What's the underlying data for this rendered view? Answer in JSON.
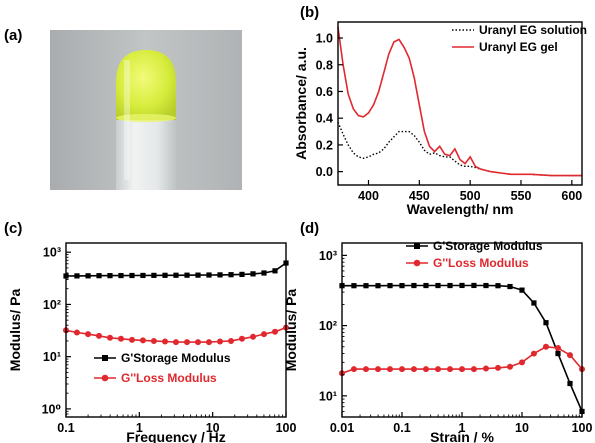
{
  "panel_labels": [
    "(a)",
    "(b)",
    "(c)",
    "(d)"
  ],
  "photo": {
    "background": "#b8bbbc",
    "gel_color": "#d9ef4a",
    "tube_color": "#dfe3e4"
  },
  "chart_data": [
    {
      "id": "b",
      "type": "line",
      "xlabel": "Wavelength/ nm",
      "ylabel": "Absorbance/ a.u.",
      "xlim": [
        370,
        610
      ],
      "ylim": [
        -0.1,
        1.12
      ],
      "xticks": [
        400,
        450,
        500,
        550,
        600
      ],
      "xtick_labels": [
        "400",
        "450",
        "500",
        "550",
        "600"
      ],
      "yticks": [
        0.0,
        0.2,
        0.4,
        0.6,
        0.8,
        1.0
      ],
      "ytick_labels": [
        "0.0",
        "0.2",
        "0.4",
        "0.6",
        "0.8",
        "1.0"
      ],
      "legend_position": "top-right",
      "series": [
        {
          "name": "Uranyl EG solution",
          "color": "#000000",
          "style": "dotted",
          "x": [
            370,
            375,
            380,
            385,
            390,
            395,
            400,
            405,
            410,
            415,
            420,
            425,
            430,
            435,
            440,
            445,
            450,
            455,
            460,
            465,
            470,
            475,
            480,
            485,
            490,
            495,
            500,
            505,
            510,
            520,
            530,
            540,
            550,
            560,
            580,
            600,
            610
          ],
          "y": [
            0.37,
            0.28,
            0.2,
            0.14,
            0.11,
            0.1,
            0.11,
            0.13,
            0.14,
            0.17,
            0.22,
            0.26,
            0.3,
            0.3,
            0.3,
            0.27,
            0.22,
            0.16,
            0.13,
            0.14,
            0.12,
            0.11,
            0.11,
            0.08,
            0.05,
            0.04,
            0.04,
            0.03,
            0.02,
            0.0,
            -0.01,
            -0.02,
            -0.02,
            -0.02,
            -0.03,
            -0.03,
            -0.03
          ]
        },
        {
          "name": "Uranyl EG gel",
          "color": "#e0282e",
          "style": "solid",
          "x": [
            370,
            375,
            380,
            385,
            390,
            395,
            400,
            405,
            410,
            415,
            420,
            425,
            430,
            435,
            440,
            445,
            450,
            455,
            460,
            465,
            470,
            475,
            480,
            485,
            490,
            495,
            500,
            505,
            510,
            520,
            530,
            540,
            550,
            560,
            580,
            600,
            610
          ],
          "y": [
            1.08,
            0.8,
            0.58,
            0.47,
            0.42,
            0.41,
            0.44,
            0.5,
            0.6,
            0.74,
            0.88,
            0.97,
            0.99,
            0.93,
            0.85,
            0.7,
            0.5,
            0.3,
            0.19,
            0.15,
            0.19,
            0.13,
            0.12,
            0.17,
            0.09,
            0.06,
            0.11,
            0.04,
            0.02,
            0.0,
            -0.01,
            -0.02,
            -0.02,
            -0.02,
            -0.03,
            -0.03,
            -0.03
          ]
        }
      ]
    },
    {
      "id": "c",
      "type": "line",
      "xlabel": "Frequency / Hz",
      "ylabel": "Modulus/ Pa",
      "xscale": "log",
      "yscale": "log",
      "xlim": [
        0.1,
        100
      ],
      "ylim": [
        0.7,
        1500
      ],
      "xticks": [
        0.1,
        1,
        10,
        100
      ],
      "xtick_labels": [
        "0.1",
        "1",
        "10",
        "100"
      ],
      "yticks": [
        1,
        10,
        100,
        1000
      ],
      "ytick_labels": [
        "10⁰",
        "10¹",
        "10²",
        "10³"
      ],
      "legend_position": "bottom-left",
      "series": [
        {
          "name": "G'Storage Modulus",
          "color": "#000000",
          "marker": "square",
          "x": [
            0.1,
            0.141,
            0.2,
            0.282,
            0.398,
            0.562,
            0.794,
            1.12,
            1.58,
            2.24,
            3.16,
            4.47,
            6.31,
            8.91,
            12.6,
            17.8,
            25.1,
            35.5,
            50.1,
            70.8,
            100
          ],
          "y": [
            350,
            352,
            353,
            355,
            356,
            357,
            358,
            359,
            360,
            361,
            362,
            363,
            364,
            366,
            368,
            371,
            376,
            385,
            400,
            440,
            620
          ]
        },
        {
          "name": "G''Loss Modulus",
          "color": "#e0282e",
          "marker": "circle",
          "x": [
            0.1,
            0.141,
            0.2,
            0.282,
            0.398,
            0.562,
            0.794,
            1.12,
            1.58,
            2.24,
            3.16,
            4.47,
            6.31,
            8.91,
            12.6,
            17.8,
            25.1,
            35.5,
            50.1,
            70.8,
            100
          ],
          "y": [
            32,
            29,
            27,
            25,
            23,
            22,
            21,
            20.5,
            20,
            19.5,
            19,
            19,
            19,
            19,
            19.5,
            20,
            22,
            24,
            27,
            30,
            36
          ]
        }
      ]
    },
    {
      "id": "d",
      "type": "line",
      "xlabel": "Strain / %",
      "ylabel": "Modulus/ Pa",
      "xscale": "log",
      "yscale": "log",
      "xlim": [
        0.01,
        100
      ],
      "ylim": [
        5,
        1500
      ],
      "xticks": [
        0.01,
        0.1,
        1,
        10,
        100
      ],
      "xtick_labels": [
        "0.01",
        "0.1",
        "1",
        "10",
        "100"
      ],
      "yticks": [
        10,
        100,
        1000
      ],
      "ytick_labels": [
        "10¹",
        "10²",
        "10³"
      ],
      "legend_position": "top-right",
      "series": [
        {
          "name": "G'Storage Modulus",
          "color": "#000000",
          "marker": "square",
          "x": [
            0.01,
            0.0158,
            0.0251,
            0.0398,
            0.0631,
            0.1,
            0.158,
            0.251,
            0.398,
            0.631,
            1,
            1.58,
            2.51,
            3.98,
            6.31,
            10,
            15.8,
            25.1,
            39.8,
            63.1,
            100
          ],
          "y": [
            370,
            370,
            370,
            370,
            371,
            371,
            372,
            372,
            372,
            372,
            373,
            373,
            372,
            370,
            360,
            320,
            210,
            110,
            40,
            15,
            6
          ]
        },
        {
          "name": "G''Loss Modulus",
          "color": "#e0282e",
          "marker": "circle",
          "x": [
            0.01,
            0.0158,
            0.0251,
            0.0398,
            0.0631,
            0.1,
            0.158,
            0.251,
            0.398,
            0.631,
            1,
            1.58,
            2.51,
            3.98,
            6.31,
            10,
            15.8,
            25.1,
            39.8,
            63.1,
            100
          ],
          "y": [
            21,
            24,
            24,
            24,
            24,
            24,
            24,
            24,
            24,
            24,
            24,
            24,
            24.5,
            25,
            26,
            30,
            40,
            50,
            48,
            38,
            24
          ]
        }
      ]
    }
  ]
}
